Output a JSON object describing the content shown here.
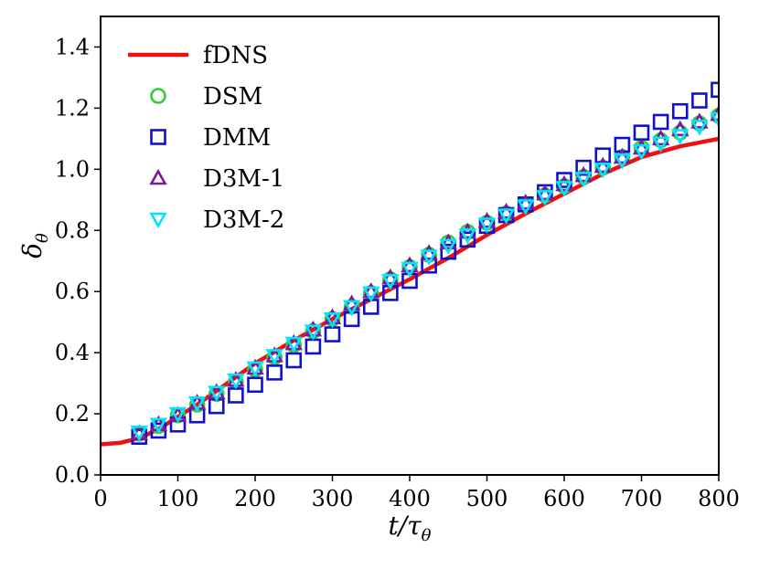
{
  "chart_data": {
    "type": "line",
    "title": "",
    "xlabel": "t/τθ",
    "ylabel": "δθ",
    "xlim": [
      0,
      800
    ],
    "ylim": [
      0.0,
      1.5
    ],
    "xticks": [
      0,
      100,
      200,
      300,
      400,
      500,
      600,
      700,
      800
    ],
    "yticks": [
      0.0,
      0.2,
      0.4,
      0.6,
      0.8,
      1.0,
      1.2,
      1.4
    ],
    "xtick_labels": [
      "0",
      "100",
      "200",
      "300",
      "400",
      "500",
      "600",
      "700",
      "800"
    ],
    "ytick_labels": [
      "0.0",
      "0.2",
      "0.4",
      "0.6",
      "0.8",
      "1.0",
      "1.2",
      "1.4"
    ],
    "grid": false,
    "legend_position": "top-left",
    "marker_x": [
      50,
      75,
      100,
      125,
      150,
      175,
      200,
      225,
      250,
      275,
      300,
      325,
      350,
      375,
      400,
      425,
      450,
      475,
      500,
      525,
      550,
      575,
      600,
      625,
      650,
      675,
      700,
      725,
      750,
      775,
      800
    ],
    "series": [
      {
        "name": "fDNS",
        "style": "line",
        "color": "#f01010",
        "x": [
          0,
          25,
          50,
          75,
          100,
          125,
          150,
          175,
          200,
          250,
          300,
          350,
          400,
          450,
          500,
          550,
          600,
          650,
          700,
          750,
          800
        ],
        "values": [
          0.1,
          0.105,
          0.12,
          0.15,
          0.19,
          0.23,
          0.275,
          0.32,
          0.365,
          0.44,
          0.51,
          0.575,
          0.64,
          0.71,
          0.785,
          0.855,
          0.92,
          0.985,
          1.04,
          1.075,
          1.1
        ]
      },
      {
        "name": "DSM",
        "style": "marker",
        "marker": "circle",
        "color": "#33cc33",
        "values": [
          0.135,
          0.16,
          0.195,
          0.23,
          0.265,
          0.305,
          0.345,
          0.385,
          0.425,
          0.47,
          0.51,
          0.55,
          0.595,
          0.64,
          0.68,
          0.72,
          0.76,
          0.795,
          0.825,
          0.855,
          0.885,
          0.915,
          0.945,
          0.975,
          1.005,
          1.04,
          1.07,
          1.095,
          1.12,
          1.15,
          1.175
        ]
      },
      {
        "name": "DMM",
        "style": "marker",
        "marker": "square",
        "color": "#1111cc",
        "values": [
          0.125,
          0.145,
          0.165,
          0.195,
          0.225,
          0.26,
          0.295,
          0.335,
          0.375,
          0.42,
          0.46,
          0.51,
          0.55,
          0.595,
          0.635,
          0.685,
          0.73,
          0.77,
          0.815,
          0.85,
          0.885,
          0.925,
          0.965,
          1.005,
          1.045,
          1.08,
          1.12,
          1.155,
          1.19,
          1.225,
          1.26
        ]
      },
      {
        "name": "D3M-1",
        "style": "marker",
        "marker": "triangle-up",
        "color": "#7a1a99",
        "values": [
          0.135,
          0.165,
          0.195,
          0.235,
          0.27,
          0.31,
          0.35,
          0.39,
          0.43,
          0.475,
          0.515,
          0.56,
          0.6,
          0.645,
          0.685,
          0.725,
          0.76,
          0.795,
          0.83,
          0.86,
          0.89,
          0.92,
          0.95,
          0.98,
          1.01,
          1.04,
          1.07,
          1.1,
          1.13,
          1.155,
          1.18
        ]
      },
      {
        "name": "D3M-2",
        "style": "marker",
        "marker": "triangle-down",
        "color": "#00e5ff",
        "values": [
          0.14,
          0.165,
          0.2,
          0.235,
          0.27,
          0.31,
          0.35,
          0.39,
          0.43,
          0.47,
          0.51,
          0.55,
          0.595,
          0.635,
          0.675,
          0.715,
          0.75,
          0.785,
          0.82,
          0.85,
          0.88,
          0.91,
          0.94,
          0.97,
          1.0,
          1.03,
          1.06,
          1.085,
          1.11,
          1.14,
          1.165
        ]
      }
    ]
  }
}
